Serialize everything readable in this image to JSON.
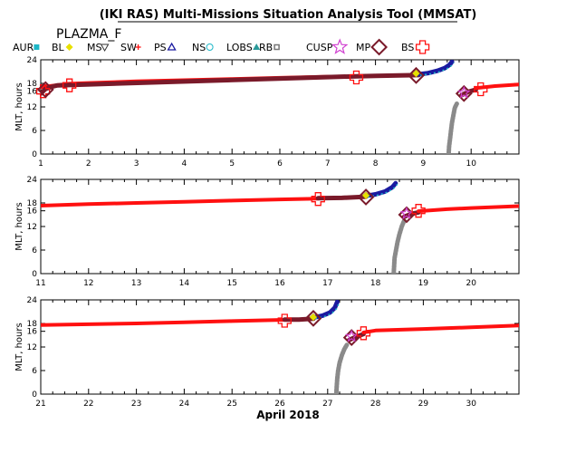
{
  "title": "(IKI RAS) Multi-Missions Situation Analysis Tool (MMSAT)",
  "subtitle": "PLAZMA_F",
  "xlabel": "April 2018",
  "colors": {
    "red": "#ff1010",
    "dark": "#7a1a2a",
    "navy": "#1a1aa0",
    "teal": "#1fb7c7",
    "gray": "#8a8a8a",
    "yellow": "#e8e000",
    "magenta": "#d040d0"
  },
  "legend": [
    {
      "label": "AUR",
      "color": "#1fb7c7",
      "icon": "filled-square-icon"
    },
    {
      "label": "BL",
      "color": "#e8e000",
      "icon": "filled-diamond-icon"
    },
    {
      "label": "MS",
      "color": "#333333",
      "icon": "open-triangle-down-icon"
    },
    {
      "label": "SW",
      "color": "#ff1010",
      "icon": "asterisk-icon"
    },
    {
      "label": "PS",
      "color": "#1a1aa0",
      "icon": "open-triangle-up-icon"
    },
    {
      "label": "NS",
      "color": "#1fb7c7",
      "icon": "open-circle-icon"
    },
    {
      "label": "LOBS",
      "color": "#2a9a9a",
      "icon": "filled-triangle-icon"
    },
    {
      "label": "RB",
      "color": "#777777",
      "icon": "small-square-icon"
    },
    {
      "label": "CUSP",
      "color": "#d040d0",
      "icon": "star-icon"
    },
    {
      "label": "MP",
      "color": "#7a1a2a",
      "icon": "open-diamond-icon"
    },
    {
      "label": "BS",
      "color": "#ff1010",
      "icon": "open-cross-icon"
    }
  ],
  "chart_data": [
    {
      "type": "scatter",
      "ylabel": "MLT, hours",
      "xlim": [
        1,
        11
      ],
      "ylim": [
        0,
        24
      ],
      "x_ticks": [
        "1",
        "2",
        "3",
        "4",
        "5",
        "6",
        "7",
        "8",
        "9",
        "10"
      ],
      "y_ticks": [
        "0",
        "6",
        "12",
        "16",
        "18",
        "24"
      ],
      "grid": false,
      "series": [
        {
          "kind": "solar-wind",
          "color": "#ff1010",
          "points": [
            [
              1.0,
              17.0
            ],
            [
              1.3,
              17.5
            ],
            [
              1.6,
              17.9
            ],
            [
              2.0,
              18.1
            ],
            [
              3.0,
              18.5
            ],
            [
              4.0,
              18.8
            ],
            [
              5.0,
              19.1
            ],
            [
              6.0,
              19.4
            ],
            [
              7.0,
              19.7
            ],
            [
              7.6,
              19.8
            ]
          ]
        },
        {
          "kind": "magnetosheath",
          "color": "#7a1a2a",
          "points": [
            [
              1.0,
              15.4
            ],
            [
              1.1,
              16.6
            ],
            [
              1.25,
              17.2
            ],
            [
              1.35,
              17.5
            ],
            [
              7.6,
              19.8
            ],
            [
              8.0,
              19.9
            ],
            [
              8.5,
              20.0
            ],
            [
              8.9,
              20.1
            ]
          ]
        },
        {
          "kind": "plasma-sheet",
          "color": "#1a1aa0",
          "points": [
            [
              8.9,
              20.3
            ],
            [
              9.1,
              20.6
            ],
            [
              9.3,
              21.2
            ],
            [
              9.45,
              21.9
            ],
            [
              9.55,
              22.7
            ],
            [
              9.6,
              23.5
            ]
          ]
        },
        {
          "kind": "radiation-belt",
          "color": "#8a8a8a",
          "points": [
            [
              9.53,
              0.0
            ],
            [
              9.54,
              2.0
            ],
            [
              9.56,
              4.0
            ],
            [
              9.58,
              6.0
            ],
            [
              9.6,
              8.0
            ],
            [
              9.63,
              10.0
            ],
            [
              9.66,
              11.8
            ],
            [
              9.7,
              12.8
            ]
          ]
        },
        {
          "kind": "magnetosheath-2",
          "color": "#7a1a2a",
          "points": [
            [
              9.8,
              15.0
            ],
            [
              9.95,
              15.9
            ],
            [
              10.1,
              16.4
            ]
          ]
        },
        {
          "kind": "solar-wind-2",
          "color": "#ff1010",
          "points": [
            [
              10.1,
              16.8
            ],
            [
              10.5,
              17.3
            ],
            [
              11.0,
              17.7
            ]
          ]
        }
      ],
      "crossings": [
        {
          "type": "BS",
          "x": 1.05,
          "y": 16.0
        },
        {
          "type": "MP",
          "x": 1.1,
          "y": 16.4
        },
        {
          "type": "BS",
          "x": 1.6,
          "y": 17.5
        },
        {
          "type": "BS",
          "x": 7.6,
          "y": 19.5
        },
        {
          "type": "MP",
          "x": 8.85,
          "y": 20.0
        },
        {
          "type": "BL",
          "x": 8.85,
          "y": 20.5
        },
        {
          "type": "MP",
          "x": 9.85,
          "y": 15.4
        },
        {
          "type": "CUSP",
          "x": 9.85,
          "y": 15.6
        },
        {
          "type": "BS",
          "x": 10.2,
          "y": 16.5
        }
      ]
    },
    {
      "type": "scatter",
      "ylabel": "MLT, hours",
      "xlim": [
        11,
        21
      ],
      "ylim": [
        0,
        24
      ],
      "x_ticks": [
        "11",
        "12",
        "13",
        "14",
        "15",
        "16",
        "17",
        "18",
        "19",
        "20"
      ],
      "y_ticks": [
        "0",
        "6",
        "12",
        "16",
        "18",
        "24"
      ],
      "grid": false,
      "series": [
        {
          "kind": "solar-wind",
          "color": "#ff1010",
          "points": [
            [
              11.0,
              17.3
            ],
            [
              12.0,
              17.7
            ],
            [
              13.0,
              18.0
            ],
            [
              14.0,
              18.3
            ],
            [
              15.0,
              18.6
            ],
            [
              16.0,
              18.9
            ],
            [
              16.8,
              19.1
            ]
          ]
        },
        {
          "kind": "magnetosheath",
          "color": "#7a1a2a",
          "points": [
            [
              16.8,
              19.2
            ],
            [
              17.3,
              19.3
            ],
            [
              17.8,
              19.6
            ]
          ]
        },
        {
          "kind": "plasma-sheet",
          "color": "#1a1aa0",
          "points": [
            [
              17.8,
              19.8
            ],
            [
              18.0,
              20.2
            ],
            [
              18.2,
              20.9
            ],
            [
              18.35,
              22.0
            ],
            [
              18.42,
              23.0
            ]
          ]
        },
        {
          "kind": "radiation-belt",
          "color": "#8a8a8a",
          "points": [
            [
              18.38,
              0.0
            ],
            [
              18.39,
              2.0
            ],
            [
              18.4,
              4.0
            ],
            [
              18.43,
              6.0
            ],
            [
              18.46,
              8.0
            ],
            [
              18.5,
              10.0
            ],
            [
              18.55,
              12.0
            ],
            [
              18.6,
              13.5
            ]
          ]
        },
        {
          "kind": "magnetosheath-2",
          "color": "#7a1a2a",
          "points": [
            [
              18.6,
              14.5
            ],
            [
              18.75,
              15.2
            ],
            [
              18.9,
              15.6
            ]
          ]
        },
        {
          "kind": "solar-wind-2",
          "color": "#ff1010",
          "points": [
            [
              18.9,
              15.9
            ],
            [
              19.5,
              16.4
            ],
            [
              20.0,
              16.7
            ],
            [
              21.0,
              17.2
            ]
          ]
        }
      ],
      "crossings": [
        {
          "type": "BS",
          "x": 16.8,
          "y": 19.0
        },
        {
          "type": "MP",
          "x": 17.8,
          "y": 19.5
        },
        {
          "type": "BL",
          "x": 17.8,
          "y": 19.9
        },
        {
          "type": "MP",
          "x": 18.65,
          "y": 15.0
        },
        {
          "type": "CUSP",
          "x": 18.65,
          "y": 15.3
        },
        {
          "type": "BS",
          "x": 18.9,
          "y": 16.0
        }
      ]
    },
    {
      "type": "scatter",
      "ylabel": "MLT, hours",
      "xlim": [
        21,
        31
      ],
      "ylim": [
        0,
        24
      ],
      "x_ticks": [
        "21",
        "22",
        "23",
        "24",
        "25",
        "26",
        "27",
        "28",
        "29",
        "30"
      ],
      "y_ticks": [
        "0",
        "6",
        "12",
        "16",
        "18",
        "24"
      ],
      "grid": false,
      "series": [
        {
          "kind": "solar-wind",
          "color": "#ff1010",
          "points": [
            [
              21.0,
              17.6
            ],
            [
              22.0,
              17.8
            ],
            [
              23.0,
              18.0
            ],
            [
              24.0,
              18.3
            ],
            [
              25.0,
              18.6
            ],
            [
              26.0,
              18.9
            ],
            [
              26.1,
              18.9
            ]
          ]
        },
        {
          "kind": "magnetosheath",
          "color": "#7a1a2a",
          "points": [
            [
              26.1,
              19.0
            ],
            [
              26.4,
              19.0
            ],
            [
              26.7,
              19.2
            ]
          ]
        },
        {
          "kind": "plasma-sheet",
          "color": "#1a1aa0",
          "points": [
            [
              26.7,
              19.5
            ],
            [
              26.9,
              20.0
            ],
            [
              27.05,
              20.8
            ],
            [
              27.15,
              22.0
            ],
            [
              27.2,
              23.5
            ]
          ]
        },
        {
          "kind": "radiation-belt",
          "color": "#8a8a8a",
          "points": [
            [
              27.18,
              0.0
            ],
            [
              27.19,
              2.0
            ],
            [
              27.2,
              4.0
            ],
            [
              27.22,
              6.0
            ],
            [
              27.25,
              8.0
            ],
            [
              27.3,
              10.0
            ],
            [
              27.35,
              11.5
            ],
            [
              27.4,
              12.5
            ]
          ]
        },
        {
          "kind": "magnetosheath-2",
          "color": "#7a1a2a",
          "points": [
            [
              27.45,
              13.8
            ],
            [
              27.6,
              14.6
            ],
            [
              27.75,
              15.3
            ]
          ]
        },
        {
          "kind": "solar-wind-2",
          "color": "#ff1010",
          "points": [
            [
              27.75,
              15.7
            ],
            [
              28.0,
              16.2
            ],
            [
              29.0,
              16.6
            ],
            [
              30.0,
              17.0
            ],
            [
              31.0,
              17.5
            ]
          ]
        }
      ],
      "crossings": [
        {
          "type": "BS",
          "x": 26.1,
          "y": 18.7
        },
        {
          "type": "MP",
          "x": 26.7,
          "y": 19.3
        },
        {
          "type": "BL",
          "x": 26.7,
          "y": 19.6
        },
        {
          "type": "MP",
          "x": 27.5,
          "y": 14.4
        },
        {
          "type": "CUSP",
          "x": 27.5,
          "y": 14.7
        },
        {
          "type": "BS",
          "x": 27.75,
          "y": 15.5
        }
      ]
    }
  ]
}
